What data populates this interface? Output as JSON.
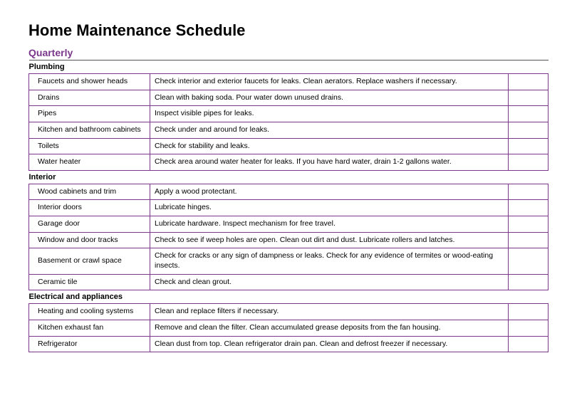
{
  "title": "Home Maintenance Schedule",
  "subtitle": "Quarterly",
  "border_color": "#7a378b",
  "section_border_color": "#555555",
  "sections": [
    {
      "name": "Plumbing",
      "rows": [
        {
          "item": "Faucets and shower heads",
          "desc": "Check interior and exterior faucets for leaks. Clean aerators. Replace washers if necessary."
        },
        {
          "item": "Drains",
          "desc": "Clean with baking soda. Pour water down unused drains."
        },
        {
          "item": "Pipes",
          "desc": "Inspect visible pipes for leaks."
        },
        {
          "item": "Kitchen and bathroom cabinets",
          "desc": "Check under and around for leaks."
        },
        {
          "item": "Toilets",
          "desc": "Check for stability and leaks."
        },
        {
          "item": "Water heater",
          "desc": "Check area around water heater for leaks. If you have hard water, drain 1-2 gallons water."
        }
      ]
    },
    {
      "name": "Interior",
      "rows": [
        {
          "item": "Wood cabinets and trim",
          "desc": "Apply a wood protectant."
        },
        {
          "item": "Interior doors",
          "desc": "Lubricate hinges."
        },
        {
          "item": "Garage door",
          "desc": "Lubricate hardware. Inspect mechanism for free travel."
        },
        {
          "item": "Window and door tracks",
          "desc": "Check to see if weep holes are open. Clean out dirt and dust. Lubricate rollers and latches."
        },
        {
          "item": "Basement or crawl space",
          "desc": "Check for cracks or any sign of dampness or leaks. Check for any evidence of termites or wood-eating insects."
        },
        {
          "item": "Ceramic tile",
          "desc": "Check and clean grout."
        }
      ]
    },
    {
      "name": "Electrical and appliances",
      "rows": [
        {
          "item": "Heating and cooling systems",
          "desc": "Clean and replace filters if necessary."
        },
        {
          "item": "Kitchen exhaust fan",
          "desc": "Remove and clean the filter. Clean accumulated grease deposits from the fan housing."
        },
        {
          "item": "Refrigerator",
          "desc": "Clean dust from top. Clean refrigerator drain pan. Clean and defrost freezer if necessary."
        }
      ]
    }
  ]
}
